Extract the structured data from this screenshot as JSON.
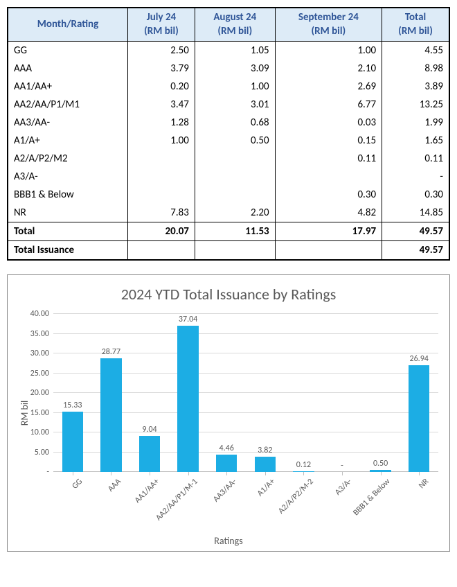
{
  "table": {
    "columns": [
      "Month/Rating",
      "July 24\n(RM bil)",
      "August 24\n(RM bil)",
      "September 24\n(RM bil)",
      "Total\n(RM bil)"
    ],
    "header_bg": "#ddebf7",
    "header_color": "#2f5597",
    "rows": [
      {
        "label": "GG",
        "cells": [
          "2.50",
          "1.05",
          "1.00",
          "4.55"
        ]
      },
      {
        "label": "AAA",
        "cells": [
          "3.79",
          "3.09",
          "2.10",
          "8.98"
        ]
      },
      {
        "label": "AA1/AA+",
        "cells": [
          "0.20",
          "1.00",
          "2.69",
          "3.89"
        ]
      },
      {
        "label": "AA2/AA/P1/M1",
        "cells": [
          "3.47",
          "3.01",
          "6.77",
          "13.25"
        ]
      },
      {
        "label": "AA3/AA-",
        "cells": [
          "1.28",
          "0.68",
          "0.03",
          "1.99"
        ]
      },
      {
        "label": "A1/A+",
        "cells": [
          "1.00",
          "0.50",
          "0.15",
          "1.65"
        ]
      },
      {
        "label": "A2/A/P2/M2",
        "cells": [
          "",
          "",
          "0.11",
          "0.11"
        ]
      },
      {
        "label": "A3/A-",
        "cells": [
          "",
          "",
          "",
          "-"
        ]
      },
      {
        "label": "BBB1 & Below",
        "cells": [
          "",
          "",
          "0.30",
          "0.30"
        ]
      },
      {
        "label": "NR",
        "cells": [
          "7.83",
          "2.20",
          "4.82",
          "14.85"
        ]
      }
    ],
    "total_row": {
      "label": "Total",
      "cells": [
        "20.07",
        "11.53",
        "17.97",
        "49.57"
      ]
    },
    "issuance_row": {
      "label": "Total Issuance",
      "cells": [
        "",
        "",
        "",
        "49.57"
      ]
    }
  },
  "chart": {
    "type": "bar",
    "title": "2024 YTD Total Issuance by Ratings",
    "ylabel": "RM bil",
    "xlabel": "Ratings",
    "title_fontsize": 22,
    "label_fontsize": 14,
    "tick_fontsize": 12,
    "title_color": "#595959",
    "tick_color": "#595959",
    "ylim": [
      0,
      40
    ],
    "ytick_step": 5,
    "ytick_decimals": 2,
    "grid_color": "#d9d9d9",
    "axis_color": "#bfbfbf",
    "background_color": "#ffffff",
    "bar_color": "#1cade4",
    "bar_width": 0.55,
    "x_tick_rotation": -45,
    "categories": [
      "GG",
      "AAA",
      "AA1/AA+",
      "AA2/AA/P1/M-1",
      "AA3/AA-",
      "A1/A+",
      "A2/A/P2/M-2",
      "A3/A-",
      "BBB1 & Below",
      "NR"
    ],
    "values": [
      15.33,
      28.77,
      9.04,
      37.04,
      4.46,
      3.82,
      0.12,
      0,
      0.5,
      26.94
    ],
    "value_labels": [
      "15.33",
      "28.77",
      "9.04",
      "37.04",
      "4.46",
      "3.82",
      "0.12",
      "-",
      "0.50",
      "26.94"
    ]
  }
}
